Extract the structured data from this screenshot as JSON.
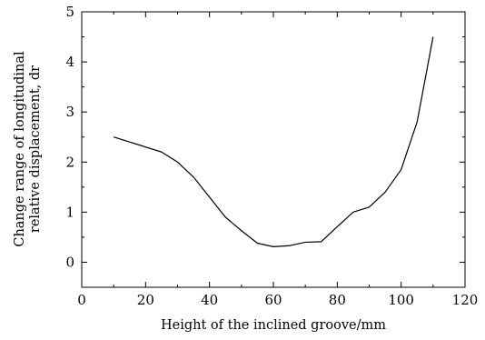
{
  "chart_data": {
    "type": "line",
    "title": "",
    "xlabel": "Height of the inclined groove/mm",
    "ylabel_lines": [
      "Change range of longitudinal",
      "relative displacement, dr"
    ],
    "xlim": [
      0,
      120
    ],
    "ylim": [
      -0.5,
      5
    ],
    "xticks": [
      0,
      20,
      40,
      60,
      80,
      100,
      120
    ],
    "yticks": [
      0,
      1,
      2,
      3,
      4,
      5
    ],
    "grid": false,
    "legend": "none",
    "series": [
      {
        "color": "#000000",
        "x": [
          10,
          25,
          30,
          35,
          40,
          45,
          50,
          55,
          60,
          65,
          70,
          75,
          80,
          85,
          90,
          95,
          100,
          105,
          110
        ],
        "y": [
          2.5,
          2.2,
          2.0,
          1.7,
          1.3,
          0.9,
          0.63,
          0.38,
          0.31,
          0.33,
          0.4,
          0.41,
          0.71,
          1.0,
          1.1,
          1.4,
          1.85,
          2.8,
          4.5
        ]
      }
    ]
  }
}
